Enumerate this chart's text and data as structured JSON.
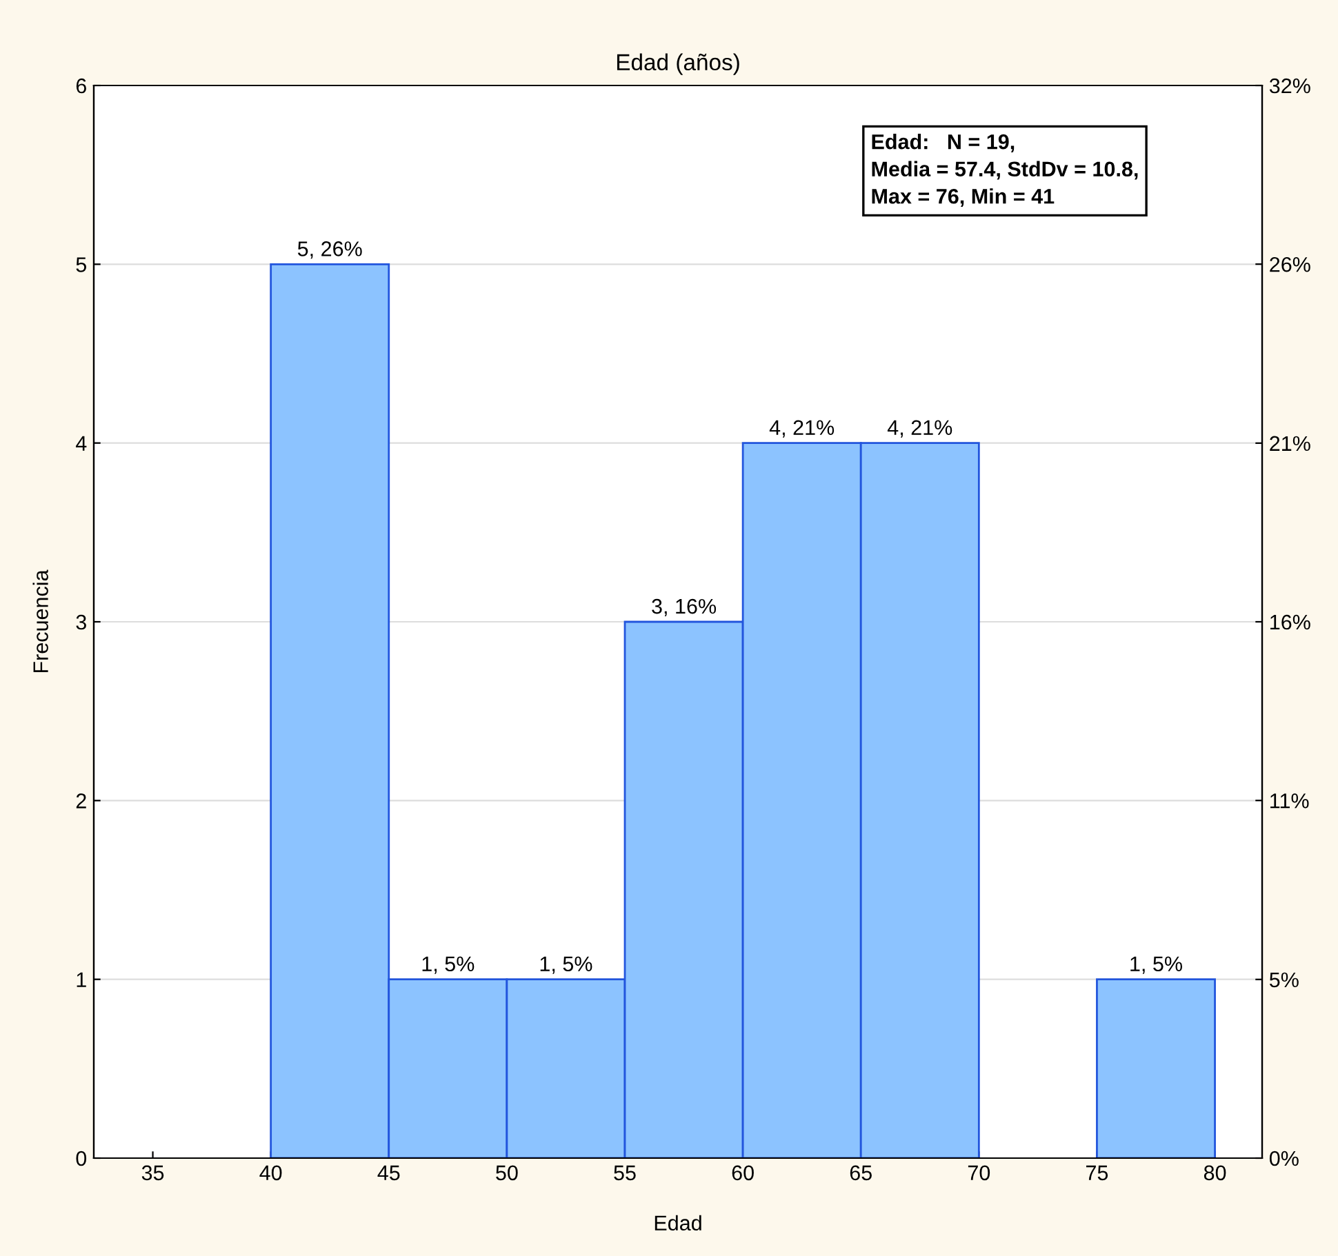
{
  "chart_data": {
    "type": "histogram",
    "title": "Edad (años)",
    "xlabel": "Edad",
    "ylabel": "Frecuencia",
    "bins": [
      35,
      40,
      45,
      50,
      55,
      60,
      65,
      70,
      75,
      80
    ],
    "values": [
      0,
      5,
      1,
      1,
      3,
      4,
      4,
      0,
      1
    ],
    "value_labels": [
      null,
      "5, 26%",
      "1, 5%",
      "1, 5%",
      "3, 16%",
      "4, 21%",
      "4, 21%",
      null,
      "1, 5%"
    ],
    "color": "#8cc3ff",
    "xlim": [
      32.5,
      82
    ],
    "xticks": [
      35,
      40,
      45,
      50,
      55,
      60,
      65,
      70,
      75,
      80
    ],
    "ylim": [
      0,
      6
    ],
    "yticks": [
      0,
      1,
      2,
      3,
      4,
      5,
      6
    ],
    "y2lim": [
      0,
      31.58
    ],
    "y2ticks": [
      {
        "value": 0,
        "label": "0%"
      },
      {
        "value": 5.26,
        "label": "5%"
      },
      {
        "value": 10.53,
        "label": "11%"
      },
      {
        "value": 15.79,
        "label": "16%"
      },
      {
        "value": 21.05,
        "label": "21%"
      },
      {
        "value": 26.32,
        "label": "26%"
      },
      {
        "value": 31.58,
        "label": "32%"
      }
    ],
    "grid": "y",
    "annotations": [
      "Edad:   N = 19,\nMedia = 57.4, StdDv = 10.8,\nMax = 76, Min = 41"
    ]
  }
}
